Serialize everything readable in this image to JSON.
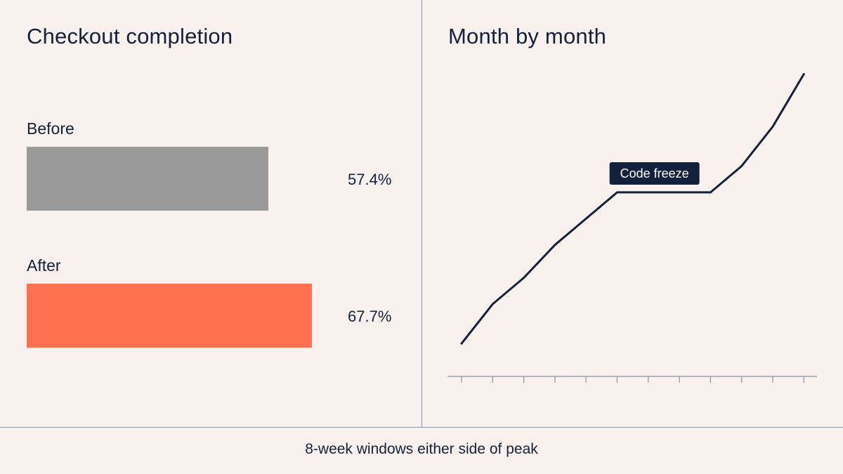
{
  "chart_data": [
    {
      "type": "bar",
      "title": "Checkout completion",
      "categories": [
        "Before",
        "After"
      ],
      "values": [
        57.4,
        67.7
      ],
      "value_labels": [
        "57.4%",
        "67.7%"
      ],
      "colors": [
        "#9a9a9a",
        "#ff7150"
      ],
      "orientation": "horizontal",
      "xlim": [
        0,
        100
      ]
    },
    {
      "type": "line",
      "title": "Month by month",
      "x": [
        1,
        2,
        3,
        4,
        5,
        6,
        7,
        8,
        9,
        10,
        11,
        12
      ],
      "series": [
        {
          "values": [
            10,
            22,
            30,
            40,
            48,
            56,
            56,
            56,
            56,
            64,
            76,
            92
          ],
          "color": "#14213d"
        }
      ],
      "ylim": [
        0,
        100
      ],
      "annotations": [
        {
          "text": "Code freeze",
          "x": 7.2
        }
      ],
      "grid": false
    }
  ],
  "footer": {
    "note": "8-week windows either side of peak"
  }
}
